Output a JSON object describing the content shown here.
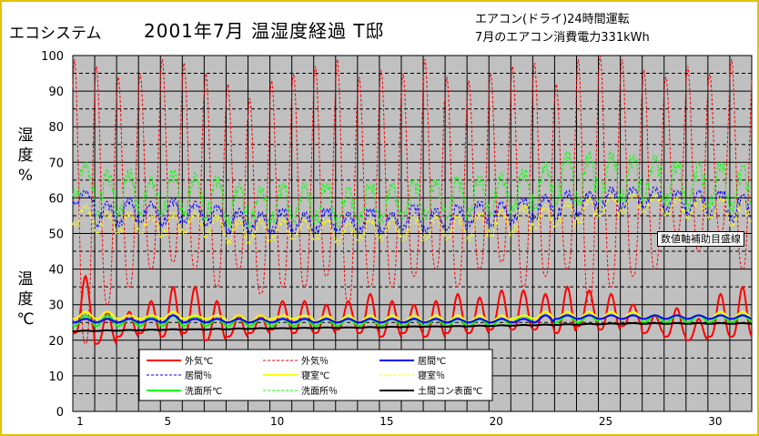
{
  "header": {
    "brand": "エコシステム",
    "title": "2001年7月  温湿度経過  T邸",
    "note_line1": "エアコン(ドライ)24時間運転",
    "note_line2": "7月のエアコン消費電力331kWh"
  },
  "axis_labels": {
    "humidity": "湿度%",
    "temperature": "温度℃"
  },
  "aux_label": "数値軸補助目盛線",
  "colors": {
    "plot_bg": "#c0c0c0",
    "frame": "#e3c200",
    "outdoor": "#ff0000",
    "living": "#0000ff",
    "bedroom": "#ffff00",
    "washroom": "#00ff00",
    "floor": "#000000"
  },
  "chart_data": {
    "type": "line",
    "title": "2001年7月  温湿度経過  T邸",
    "xlabel": "",
    "ylabel": "",
    "ylim": [
      0,
      100
    ],
    "xlim": [
      1,
      32
    ],
    "x_ticks": [
      1,
      5,
      10,
      15,
      20,
      25,
      30
    ],
    "y_ticks": [
      0,
      10,
      20,
      30,
      40,
      50,
      60,
      70,
      80,
      90,
      100
    ],
    "grid": true,
    "legend_position": "bottom-left",
    "series": [
      {
        "name": "外気℃",
        "key": "outdoor_t",
        "color": "#ff0000",
        "style": "solid",
        "daily_min": [
          22,
          19,
          21,
          22,
          21,
          22,
          20,
          21,
          22,
          23,
          22,
          22,
          23,
          22,
          21,
          22,
          21,
          22,
          22,
          23,
          23,
          23,
          22,
          24,
          23,
          24,
          22,
          21,
          20,
          21,
          21
        ],
        "daily_max": [
          38,
          28,
          28,
          31,
          35,
          35,
          31,
          27,
          27,
          31,
          31,
          30,
          31,
          33,
          31,
          30,
          31,
          33,
          32,
          34,
          34,
          33,
          35,
          34,
          33,
          30,
          27,
          29,
          26,
          33,
          35
        ]
      },
      {
        "name": "外気％",
        "key": "outdoor_h",
        "color": "#ff0000",
        "style": "dashed",
        "daily_min": [
          19,
          30,
          35,
          40,
          42,
          40,
          35,
          40,
          33,
          35,
          35,
          38,
          30,
          35,
          35,
          38,
          40,
          35,
          40,
          42,
          35,
          38,
          40,
          30,
          35,
          38,
          40,
          50,
          45,
          50,
          40
        ],
        "daily_max": [
          99,
          97,
          94,
          95,
          99,
          98,
          95,
          92,
          88,
          93,
          95,
          97,
          99,
          94,
          96,
          95,
          99,
          94,
          93,
          95,
          97,
          98,
          92,
          99,
          100,
          99,
          96,
          94,
          97,
          95,
          99
        ]
      },
      {
        "name": "居間℃",
        "key": "living_t",
        "color": "#0000ff",
        "style": "solid",
        "daily_min": [
          25,
          25,
          25,
          25,
          25,
          25,
          25,
          25,
          25,
          25,
          25,
          25,
          25,
          25,
          25,
          25,
          25,
          25,
          25,
          25,
          25,
          25,
          26,
          26,
          26,
          26,
          26,
          26,
          26,
          26,
          26
        ],
        "daily_max": [
          26,
          26,
          26,
          26,
          27,
          26,
          26,
          26,
          26,
          26,
          26,
          26,
          26,
          26,
          26,
          26,
          26,
          26,
          26,
          26,
          26,
          27,
          27,
          27,
          27,
          27,
          27,
          27,
          27,
          27,
          27
        ]
      },
      {
        "name": "居間％",
        "key": "living_h",
        "color": "#0000ff",
        "style": "dashed",
        "daily_min": [
          58,
          52,
          52,
          53,
          52,
          53,
          52,
          50,
          50,
          50,
          50,
          50,
          50,
          50,
          50,
          51,
          50,
          51,
          52,
          52,
          53,
          54,
          54,
          55,
          56,
          57,
          57,
          56,
          55,
          54,
          53
        ],
        "daily_max": [
          62,
          59,
          60,
          59,
          60,
          59,
          58,
          57,
          56,
          57,
          56,
          57,
          56,
          57,
          56,
          58,
          57,
          58,
          59,
          59,
          60,
          61,
          62,
          62,
          63,
          63,
          63,
          62,
          62,
          62,
          61
        ]
      },
      {
        "name": "寝室℃",
        "key": "bedroom_t",
        "color": "#ffff00",
        "style": "solid",
        "daily_min": [
          26,
          26,
          26,
          26,
          26,
          26,
          26,
          25,
          25,
          26,
          26,
          25,
          25,
          25,
          25,
          25,
          25,
          25,
          25,
          25,
          26,
          26,
          26,
          26,
          26,
          26,
          26,
          26,
          26,
          26,
          26
        ],
        "daily_max": [
          28,
          28,
          27,
          27,
          28,
          27,
          27,
          27,
          27,
          27,
          27,
          27,
          27,
          27,
          27,
          27,
          27,
          27,
          27,
          27,
          27,
          28,
          28,
          28,
          28,
          28,
          27,
          27,
          27,
          28,
          28
        ]
      },
      {
        "name": "寝室％",
        "key": "bedroom_h",
        "color": "#ffff00",
        "style": "dashed",
        "daily_min": [
          52,
          50,
          50,
          50,
          49,
          50,
          49,
          47,
          47,
          48,
          48,
          48,
          47,
          48,
          48,
          48,
          48,
          48,
          48,
          49,
          50,
          51,
          52,
          53,
          55,
          56,
          56,
          55,
          54,
          54,
          52
        ],
        "daily_max": [
          58,
          56,
          56,
          55,
          56,
          56,
          55,
          54,
          54,
          54,
          54,
          54,
          53,
          54,
          54,
          55,
          55,
          55,
          56,
          57,
          58,
          58,
          59,
          60,
          61,
          61,
          61,
          60,
          60,
          60,
          59
        ]
      },
      {
        "name": "洗面所℃",
        "key": "washroom_t",
        "color": "#00ff00",
        "style": "solid",
        "daily_min": [
          24,
          24,
          24,
          24,
          24,
          24,
          24,
          24,
          24,
          24,
          24,
          24,
          24,
          24,
          24,
          24,
          24,
          24,
          24,
          24,
          25,
          25,
          25,
          25,
          26,
          26,
          25,
          25,
          25,
          25,
          25
        ],
        "daily_max": [
          27,
          27,
          26,
          27,
          27,
          27,
          26,
          26,
          26,
          26,
          26,
          26,
          26,
          26,
          26,
          26,
          26,
          26,
          26,
          26,
          27,
          27,
          27,
          27,
          27,
          27,
          27,
          27,
          27,
          27,
          27
        ]
      },
      {
        "name": "洗面所％",
        "key": "washroom_h",
        "color": "#00ff00",
        "style": "dashed",
        "daily_min": [
          60,
          55,
          55,
          55,
          55,
          55,
          54,
          52,
          52,
          53,
          53,
          53,
          52,
          53,
          53,
          54,
          54,
          54,
          55,
          55,
          56,
          57,
          58,
          58,
          59,
          59,
          59,
          58,
          57,
          57,
          56
        ],
        "daily_max": [
          70,
          68,
          68,
          66,
          68,
          67,
          66,
          64,
          63,
          64,
          64,
          64,
          63,
          64,
          64,
          65,
          65,
          66,
          66,
          67,
          68,
          70,
          73,
          73,
          73,
          72,
          72,
          70,
          70,
          70,
          69
        ]
      },
      {
        "name": "土間コン表面℃",
        "key": "floor_t",
        "color": "#000000",
        "style": "solid",
        "daily_min": [
          22.5,
          22.6,
          22.7,
          22.8,
          22.9,
          23.0,
          23.0,
          23.1,
          23.2,
          23.3,
          23.3,
          23.4,
          23.5,
          23.5,
          23.6,
          23.7,
          23.8,
          23.8,
          23.9,
          24.0,
          24.1,
          24.2,
          24.3,
          24.4,
          24.5,
          24.6,
          24.6,
          24.6,
          24.6,
          24.6,
          24.6
        ],
        "daily_max": [
          22.7,
          22.8,
          22.9,
          23.0,
          23.1,
          23.1,
          23.2,
          23.3,
          23.4,
          23.4,
          23.5,
          23.6,
          23.6,
          23.7,
          23.8,
          23.9,
          23.9,
          24.0,
          24.1,
          24.2,
          24.3,
          24.4,
          24.5,
          24.6,
          24.7,
          24.8,
          24.8,
          24.8,
          24.8,
          24.8,
          24.8
        ]
      }
    ]
  }
}
